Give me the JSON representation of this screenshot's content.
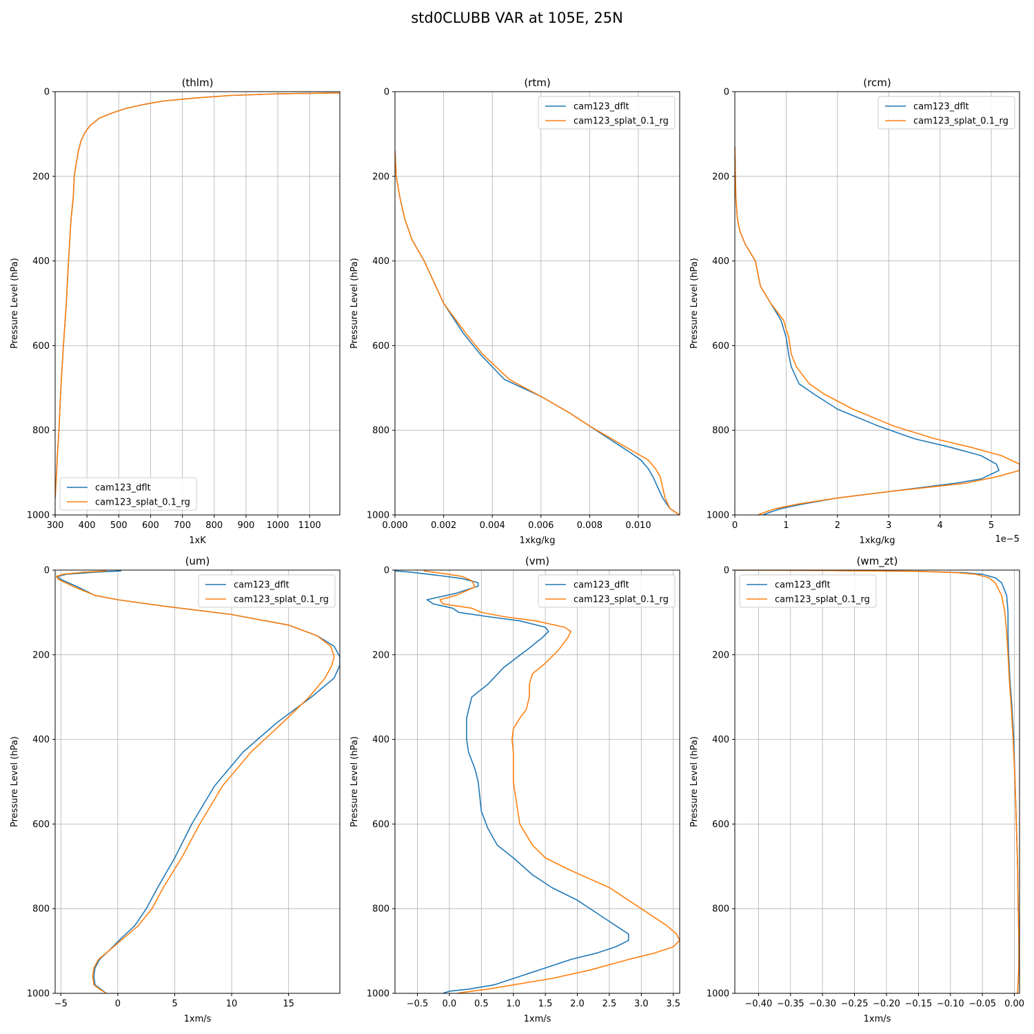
{
  "figure": {
    "suptitle": "std0CLUBB VAR at 105E, 25N"
  },
  "chart_data": [
    {
      "type": "line",
      "title": "(thlm)",
      "xlabel": "1xK",
      "ylabel": "Pressure Level (hPa)",
      "xlim": [
        300,
        1195
      ],
      "ylim": [
        1000,
        0
      ],
      "xticks": [
        300,
        400,
        500,
        600,
        700,
        800,
        900,
        1000,
        1100
      ],
      "xtick_labels": [
        "300",
        "400",
        "500",
        "600",
        "700",
        "800",
        "900",
        "1000",
        "1100"
      ],
      "yticks": [
        0,
        200,
        400,
        600,
        800,
        1000
      ],
      "ytick_labels": [
        "0",
        "200",
        "400",
        "600",
        "800",
        "1000"
      ],
      "offset_label": "",
      "grid": true,
      "legend": "lower-left",
      "series": [
        {
          "name": "cam123_dflt",
          "color": "#1f77b4",
          "x": [
            1195,
            1000,
            850,
            740,
            640,
            580,
            520,
            480,
            440,
            410,
            395,
            382,
            373,
            366,
            360,
            357,
            350,
            342,
            335,
            326,
            318,
            312,
            307,
            303,
            300
          ],
          "y": [
            3,
            5,
            9,
            15,
            22,
            30,
            40,
            50,
            62,
            80,
            95,
            115,
            140,
            170,
            200,
            250,
            300,
            400,
            500,
            600,
            700,
            800,
            860,
            920,
            960
          ]
        },
        {
          "name": "cam123_splat_0.1_rg",
          "color": "#ff7f0e",
          "x": [
            1195,
            1000,
            850,
            740,
            640,
            580,
            520,
            480,
            440,
            410,
            395,
            382,
            373,
            366,
            360,
            357,
            350,
            342,
            335,
            326,
            318,
            312,
            307,
            303,
            300
          ],
          "y": [
            3,
            5,
            9,
            15,
            22,
            30,
            40,
            50,
            62,
            80,
            95,
            115,
            140,
            170,
            200,
            250,
            300,
            400,
            500,
            600,
            700,
            800,
            860,
            920,
            960
          ]
        }
      ]
    },
    {
      "type": "line",
      "title": "(rtm)",
      "xlabel": "1xkg/kg",
      "ylabel": "Pressure Level (hPa)",
      "xlim": [
        0,
        0.0117
      ],
      "ylim": [
        1000,
        0
      ],
      "xticks": [
        0,
        0.002,
        0.004,
        0.006,
        0.008,
        0.01
      ],
      "xtick_labels": [
        "0.000",
        "0.002",
        "0.004",
        "0.006",
        "0.008",
        "0.010"
      ],
      "yticks": [
        0,
        200,
        400,
        600,
        800,
        1000
      ],
      "ytick_labels": [
        "0",
        "200",
        "400",
        "600",
        "800",
        "1000"
      ],
      "offset_label": "",
      "grid": true,
      "legend": "upper-right",
      "series": [
        {
          "name": "cam123_dflt",
          "color": "#1f77b4",
          "x": [
            0,
            5e-05,
            0.0002,
            0.0004,
            0.0007,
            0.0012,
            0.002,
            0.0028,
            0.0035,
            0.0045,
            0.006,
            0.0072,
            0.008,
            0.0088,
            0.0096,
            0.0101,
            0.0104,
            0.0106,
            0.0108,
            0.011,
            0.0113,
            0.0117
          ],
          "y": [
            140,
            200,
            250,
            300,
            350,
            400,
            500,
            570,
            620,
            680,
            720,
            760,
            790,
            820,
            850,
            870,
            890,
            910,
            935,
            960,
            985,
            1000
          ]
        },
        {
          "name": "cam123_splat_0.1_rg",
          "color": "#ff7f0e",
          "x": [
            0,
            5e-05,
            0.0002,
            0.0004,
            0.0007,
            0.0012,
            0.002,
            0.0029,
            0.0036,
            0.0047,
            0.006,
            0.0072,
            0.008,
            0.0089,
            0.0098,
            0.0104,
            0.0107,
            0.0109,
            0.011,
            0.0111,
            0.0113,
            0.0117
          ],
          "y": [
            140,
            200,
            250,
            300,
            350,
            400,
            500,
            570,
            620,
            680,
            720,
            760,
            790,
            820,
            850,
            870,
            890,
            910,
            935,
            960,
            985,
            1000
          ]
        }
      ]
    },
    {
      "type": "line",
      "title": "(rcm)",
      "xlabel": "1xkg/kg",
      "ylabel": "Pressure Level (hPa)",
      "xlim": [
        0,
        5.55
      ],
      "ylim": [
        1000,
        0
      ],
      "xticks": [
        0,
        1,
        2,
        3,
        4,
        5
      ],
      "xtick_labels": [
        "0",
        "1",
        "2",
        "3",
        "4",
        "5"
      ],
      "yticks": [
        0,
        200,
        400,
        600,
        800,
        1000
      ],
      "ytick_labels": [
        "0",
        "200",
        "400",
        "600",
        "800",
        "1000"
      ],
      "offset_label": "1e−5",
      "grid": true,
      "legend": "upper-right",
      "series": [
        {
          "name": "cam123_dflt",
          "color": "#1f77b4",
          "x": [
            0,
            0.02,
            0.05,
            0.1,
            0.2,
            0.4,
            0.5,
            0.7,
            0.9,
            1.0,
            1.05,
            1.1,
            1.25,
            1.55,
            2.0,
            2.8,
            3.5,
            4.2,
            4.8,
            5.1,
            5.15,
            4.8,
            4.3,
            3.0,
            2.0,
            1.3,
            0.9,
            0.7,
            0.55
          ],
          "y": [
            130,
            250,
            300,
            330,
            360,
            400,
            460,
            500,
            540,
            580,
            620,
            650,
            690,
            715,
            750,
            790,
            820,
            840,
            860,
            880,
            895,
            915,
            925,
            945,
            960,
            975,
            985,
            993,
            1000
          ]
        },
        {
          "name": "cam123_splat_0.1_rg",
          "color": "#ff7f0e",
          "x": [
            0,
            0.02,
            0.05,
            0.1,
            0.2,
            0.4,
            0.5,
            0.7,
            0.95,
            1.05,
            1.1,
            1.2,
            1.45,
            1.75,
            2.3,
            3.1,
            3.9,
            4.6,
            5.2,
            5.55,
            5.55,
            5.1,
            4.5,
            3.0,
            2.0,
            1.2,
            0.8,
            0.6,
            0.45
          ],
          "y": [
            130,
            250,
            300,
            330,
            360,
            400,
            460,
            500,
            540,
            580,
            620,
            650,
            690,
            715,
            750,
            790,
            820,
            840,
            860,
            880,
            895,
            910,
            925,
            945,
            960,
            975,
            985,
            993,
            1000
          ]
        }
      ]
    },
    {
      "type": "line",
      "title": "(um)",
      "xlabel": "1xm/s",
      "ylabel": "Pressure Level (hPa)",
      "xlim": [
        -5.5,
        19.5
      ],
      "ylim": [
        1000,
        0
      ],
      "xticks": [
        -5,
        0,
        5,
        10,
        15
      ],
      "xtick_labels": [
        "−5",
        "0",
        "5",
        "10",
        "15"
      ],
      "yticks": [
        0,
        200,
        400,
        600,
        800,
        1000
      ],
      "ytick_labels": [
        "0",
        "200",
        "400",
        "600",
        "800",
        "1000"
      ],
      "offset_label": "",
      "grid": true,
      "legend": "upper-right",
      "series": [
        {
          "name": "cam123_dflt",
          "color": "#1f77b4",
          "x": [
            0.3,
            -2,
            -4.5,
            -5.3,
            -5,
            -3.5,
            -2,
            0,
            4,
            10,
            15,
            17.5,
            19,
            19.5,
            19.5,
            19,
            17,
            14,
            11,
            8.5,
            6.5,
            5,
            3.5,
            2.5,
            1.5,
            0.3,
            -0.8,
            -1.6,
            -2,
            -2.1,
            -2,
            -1.5,
            -1
          ],
          "y": [
            2,
            5,
            10,
            15,
            22,
            40,
            60,
            70,
            85,
            105,
            130,
            155,
            180,
            205,
            225,
            255,
            300,
            360,
            430,
            510,
            600,
            680,
            750,
            800,
            840,
            870,
            900,
            920,
            940,
            960,
            980,
            990,
            1000
          ]
        },
        {
          "name": "cam123_splat_0.1_rg",
          "color": "#ff7f0e",
          "x": [
            -1,
            -3,
            -4.8,
            -5.4,
            -5.2,
            -3.8,
            -2,
            0,
            4,
            10,
            15,
            17.5,
            18.7,
            19,
            18.8,
            18.2,
            16.8,
            14.5,
            11.7,
            9.2,
            7.2,
            5.6,
            4,
            3,
            1.8,
            0.5,
            -0.8,
            -1.7,
            -2.1,
            -2.2,
            -2.1,
            -1.6,
            -1
          ],
          "y": [
            2,
            5,
            10,
            15,
            22,
            40,
            60,
            70,
            85,
            105,
            130,
            155,
            180,
            205,
            225,
            255,
            300,
            360,
            430,
            510,
            600,
            680,
            750,
            800,
            840,
            870,
            900,
            920,
            940,
            960,
            980,
            990,
            1000
          ]
        }
      ]
    },
    {
      "type": "line",
      "title": "(vm)",
      "xlabel": "1xm/s",
      "ylabel": "Pressure Level (hPa)",
      "xlim": [
        -0.85,
        3.6
      ],
      "ylim": [
        1000,
        0
      ],
      "xticks": [
        -0.5,
        0,
        0.5,
        1.0,
        1.5,
        2.0,
        2.5,
        3.0,
        3.5
      ],
      "xtick_labels": [
        "−0.5",
        "0.0",
        "0.5",
        "1.0",
        "1.5",
        "2.0",
        "2.5",
        "3.0",
        "3.5"
      ],
      "yticks": [
        0,
        200,
        400,
        600,
        800,
        1000
      ],
      "ytick_labels": [
        "0",
        "200",
        "400",
        "600",
        "800",
        "1000"
      ],
      "offset_label": "",
      "grid": true,
      "legend": "upper-right",
      "series": [
        {
          "name": "cam123_dflt",
          "color": "#1f77b4",
          "x": [
            -0.85,
            -0.6,
            -0.2,
            0.2,
            0.45,
            0.45,
            0.1,
            -0.35,
            -0.25,
            0.05,
            0.15,
            0.6,
            1.1,
            1.5,
            1.55,
            1.45,
            1.2,
            0.85,
            0.6,
            0.35,
            0.3,
            0.27,
            0.27,
            0.3,
            0.4,
            0.45,
            0.5,
            0.6,
            0.75,
            1.0,
            1.3,
            1.6,
            2.0,
            2.4,
            2.6,
            2.8,
            2.8,
            2.6,
            2.3,
            1.9,
            1.4,
            1.0,
            0.7,
            0.3,
            0.0,
            -0.1
          ],
          "y": [
            2,
            5,
            12,
            20,
            30,
            38,
            55,
            70,
            80,
            90,
            100,
            110,
            120,
            135,
            145,
            160,
            190,
            230,
            270,
            300,
            330,
            350,
            400,
            430,
            470,
            500,
            570,
            610,
            650,
            680,
            720,
            750,
            780,
            820,
            840,
            860,
            875,
            890,
            905,
            920,
            945,
            965,
            980,
            990,
            995,
            1000
          ]
        },
        {
          "name": "cam123_splat_0.1_rg",
          "color": "#ff7f0e",
          "x": [
            -0.4,
            -0.1,
            0.2,
            0.35,
            0.4,
            0.1,
            -0.15,
            -0.1,
            0.35,
            0.5,
            0.85,
            1.35,
            1.8,
            1.9,
            1.85,
            1.7,
            1.5,
            1.3,
            1.25,
            1.25,
            1.2,
            1.1,
            1.0,
            0.98,
            1.0,
            1.0,
            1.05,
            1.1,
            1.3,
            1.5,
            1.9,
            2.5,
            3.0,
            3.4,
            3.55,
            3.6,
            3.5,
            3.2,
            2.8,
            2.2,
            1.6,
            1.0,
            0.6,
            0.35,
            0.2,
            0.12
          ],
          "y": [
            2,
            8,
            15,
            25,
            40,
            60,
            70,
            80,
            90,
            100,
            110,
            120,
            135,
            145,
            160,
            190,
            220,
            245,
            270,
            300,
            330,
            350,
            375,
            400,
            430,
            500,
            550,
            600,
            650,
            680,
            710,
            750,
            800,
            840,
            860,
            875,
            890,
            905,
            920,
            945,
            965,
            980,
            990,
            995,
            998,
            1000
          ]
        }
      ]
    },
    {
      "type": "line",
      "title": "(wm_zt)",
      "xlabel": "1xm/s",
      "ylabel": "Pressure Level (hPa)",
      "xlim": [
        -0.437,
        0.008
      ],
      "ylim": [
        1000,
        0
      ],
      "xticks": [
        -0.4,
        -0.35,
        -0.3,
        -0.25,
        -0.2,
        -0.15,
        -0.1,
        -0.05,
        0.0
      ],
      "xtick_labels": [
        "−0.40",
        "−0.35",
        "−0.30",
        "−0.25",
        "−0.20",
        "−0.15",
        "−0.10",
        "−0.05",
        "0.00"
      ],
      "yticks": [
        0,
        200,
        400,
        600,
        800,
        1000
      ],
      "ytick_labels": [
        "0",
        "200",
        "400",
        "600",
        "800",
        "1000"
      ],
      "offset_label": "",
      "grid": true,
      "legend": "upper-left",
      "series": [
        {
          "name": "cam123_dflt",
          "color": "#1f77b4",
          "x": [
            -0.437,
            -0.3,
            -0.15,
            -0.08,
            -0.05,
            -0.03,
            -0.02,
            -0.012,
            -0.01,
            -0.01,
            -0.009,
            -0.007,
            -0.004,
            -0.001,
            0.001,
            0.003,
            0.005,
            0.006,
            0.007,
            0.007,
            0.006,
            0.005
          ],
          "y": [
            0,
            1,
            3,
            6,
            10,
            18,
            30,
            60,
            100,
            150,
            200,
            260,
            320,
            400,
            500,
            600,
            700,
            800,
            880,
            930,
            970,
            1000
          ]
        },
        {
          "name": "cam123_splat_0.1_rg",
          "color": "#ff7f0e",
          "x": [
            -0.437,
            -0.3,
            -0.15,
            -0.09,
            -0.06,
            -0.04,
            -0.03,
            -0.02,
            -0.015,
            -0.012,
            -0.01,
            -0.008,
            -0.005,
            -0.002,
            0.001,
            0.003,
            0.005,
            0.006,
            0.007,
            0.007,
            0.006,
            0.005
          ],
          "y": [
            0,
            1,
            3,
            6,
            10,
            18,
            30,
            60,
            100,
            150,
            200,
            260,
            320,
            400,
            500,
            600,
            700,
            800,
            880,
            930,
            970,
            1000
          ]
        }
      ]
    }
  ]
}
